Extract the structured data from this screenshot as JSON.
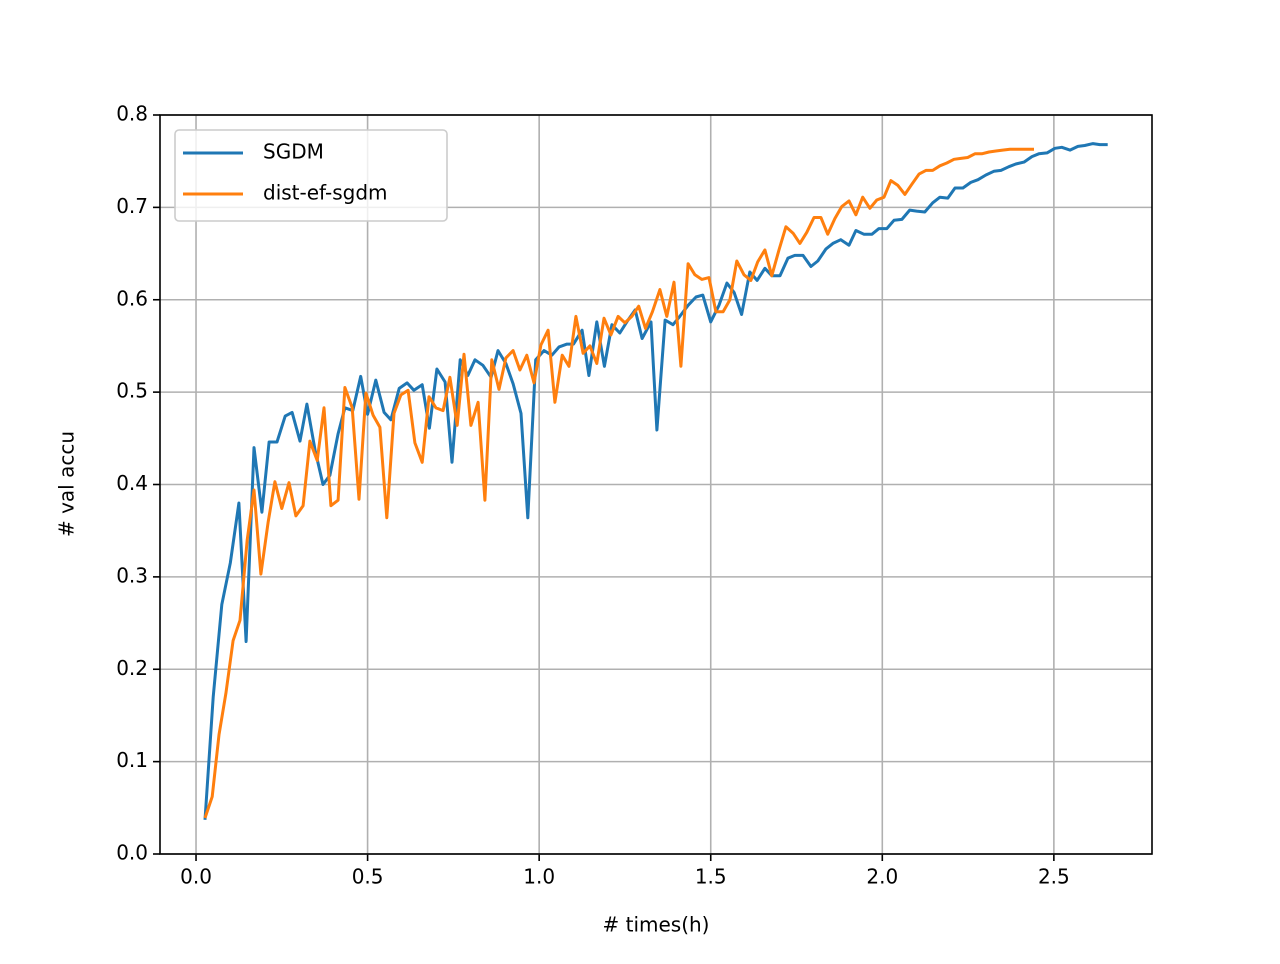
{
  "chart_data": {
    "type": "line",
    "xlabel": "# times(h)",
    "ylabel": "# val accu",
    "xlim": [
      -0.105,
      2.786
    ],
    "ylim": [
      0,
      0.8
    ],
    "xticks": [
      {
        "value": 0,
        "label": "0.0"
      },
      0.5,
      {
        "value": 1,
        "label": "1.0"
      },
      1.5,
      {
        "value": 2,
        "label": "2.0"
      },
      2.5
    ],
    "yticks": [
      {
        "value": 0,
        "label": "0.0"
      },
      0.1,
      0.2,
      0.3,
      0.4,
      0.5,
      0.6,
      0.7,
      0.8
    ],
    "grid": true,
    "legend": "upper left",
    "series": [
      {
        "name": "SGDM",
        "color": "#1f77b4",
        "x": [
          0.026,
          0.05,
          0.075,
          0.1,
          0.125,
          0.146,
          0.169,
          0.192,
          0.213,
          0.236,
          0.26,
          0.28,
          0.303,
          0.323,
          0.347,
          0.37,
          0.39,
          0.414,
          0.434,
          0.457,
          0.48,
          0.5,
          0.524,
          0.548,
          0.568,
          0.592,
          0.615,
          0.635,
          0.659,
          0.68,
          0.702,
          0.726,
          0.746,
          0.77,
          0.792,
          0.813,
          0.836,
          0.86,
          0.88,
          0.903,
          0.924,
          0.947,
          0.967,
          0.99,
          1.014,
          1.037,
          1.058,
          1.081,
          1.1,
          1.125,
          1.145,
          1.168,
          1.19,
          1.212,
          1.235,
          1.259,
          1.28,
          1.3,
          1.326,
          1.343,
          1.367,
          1.39,
          1.41,
          1.434,
          1.457,
          1.477,
          1.5,
          1.524,
          1.547,
          1.568,
          1.59,
          1.614,
          1.635,
          1.658,
          1.678,
          1.702,
          1.725,
          1.745,
          1.769,
          1.792,
          1.812,
          1.836,
          1.856,
          1.879,
          1.903,
          1.923,
          1.946,
          1.97,
          1.99,
          2.013,
          2.034,
          2.057,
          2.08,
          2.1,
          2.124,
          2.147,
          2.168,
          2.191,
          2.212,
          2.235,
          2.258,
          2.279,
          2.302,
          2.325,
          2.346,
          2.369,
          2.389,
          2.413,
          2.436,
          2.456,
          2.48,
          2.503,
          2.523,
          2.547,
          2.57,
          2.59,
          2.614,
          2.634,
          2.657
        ],
        "values": [
          0.037,
          0.17,
          0.27,
          0.315,
          0.38,
          0.23,
          0.44,
          0.37,
          0.446,
          0.446,
          0.474,
          0.478,
          0.447,
          0.487,
          0.437,
          0.4,
          0.41,
          0.455,
          0.483,
          0.48,
          0.517,
          0.476,
          0.513,
          0.478,
          0.47,
          0.504,
          0.51,
          0.502,
          0.508,
          0.461,
          0.525,
          0.511,
          0.424,
          0.535,
          0.518,
          0.535,
          0.529,
          0.516,
          0.545,
          0.531,
          0.509,
          0.477,
          0.364,
          0.535,
          0.545,
          0.54,
          0.549,
          0.552,
          0.552,
          0.567,
          0.518,
          0.576,
          0.528,
          0.573,
          0.564,
          0.578,
          0.589,
          0.558,
          0.576,
          0.459,
          0.578,
          0.573,
          0.582,
          0.594,
          0.603,
          0.605,
          0.576,
          0.594,
          0.618,
          0.608,
          0.584,
          0.63,
          0.621,
          0.634,
          0.626,
          0.626,
          0.645,
          0.648,
          0.648,
          0.636,
          0.642,
          0.655,
          0.661,
          0.665,
          0.659,
          0.675,
          0.671,
          0.671,
          0.677,
          0.677,
          0.686,
          0.687,
          0.697,
          0.696,
          0.695,
          0.705,
          0.711,
          0.71,
          0.721,
          0.721,
          0.727,
          0.73,
          0.735,
          0.739,
          0.74,
          0.744,
          0.747,
          0.749,
          0.755,
          0.758,
          0.759,
          0.764,
          0.765,
          0.762,
          0.766,
          0.767,
          0.769,
          0.768,
          0.768
        ]
      },
      {
        "name": "dist-ef-sgdm",
        "color": "#ff7f0e",
        "x": [
          0.026,
          0.047,
          0.067,
          0.087,
          0.108,
          0.128,
          0.149,
          0.169,
          0.189,
          0.21,
          0.23,
          0.25,
          0.271,
          0.291,
          0.312,
          0.332,
          0.353,
          0.373,
          0.393,
          0.414,
          0.434,
          0.455,
          0.475,
          0.495,
          0.516,
          0.536,
          0.556,
          0.577,
          0.597,
          0.618,
          0.638,
          0.659,
          0.679,
          0.699,
          0.72,
          0.74,
          0.761,
          0.781,
          0.801,
          0.822,
          0.842,
          0.862,
          0.883,
          0.903,
          0.924,
          0.944,
          0.964,
          0.985,
          1.005,
          1.026,
          1.046,
          1.067,
          1.087,
          1.107,
          1.128,
          1.148,
          1.168,
          1.189,
          1.209,
          1.23,
          1.25,
          1.27,
          1.29,
          1.31,
          1.33,
          1.352,
          1.372,
          1.393,
          1.413,
          1.434,
          1.454,
          1.474,
          1.495,
          1.515,
          1.536,
          1.556,
          1.576,
          1.597,
          1.617,
          1.637,
          1.658,
          1.678,
          1.699,
          1.719,
          1.74,
          1.76,
          1.78,
          1.801,
          1.821,
          1.841,
          1.862,
          1.882,
          1.903,
          1.923,
          1.943,
          1.964,
          1.984,
          2.005,
          2.025,
          2.045,
          2.066,
          2.086,
          2.107,
          2.127,
          2.147,
          2.168,
          2.188,
          2.209,
          2.229,
          2.249,
          2.27,
          2.29,
          2.311,
          2.331,
          2.351,
          2.372,
          2.392,
          2.413,
          2.442
        ],
        "values": [
          0.039,
          0.062,
          0.129,
          0.174,
          0.231,
          0.253,
          0.34,
          0.394,
          0.303,
          0.359,
          0.403,
          0.374,
          0.402,
          0.366,
          0.377,
          0.447,
          0.426,
          0.483,
          0.377,
          0.383,
          0.505,
          0.483,
          0.384,
          0.499,
          0.475,
          0.462,
          0.364,
          0.477,
          0.497,
          0.502,
          0.445,
          0.424,
          0.495,
          0.483,
          0.48,
          0.516,
          0.464,
          0.541,
          0.464,
          0.489,
          0.383,
          0.535,
          0.503,
          0.537,
          0.545,
          0.524,
          0.54,
          0.51,
          0.551,
          0.567,
          0.489,
          0.54,
          0.528,
          0.582,
          0.542,
          0.55,
          0.531,
          0.58,
          0.562,
          0.582,
          0.575,
          0.582,
          0.593,
          0.569,
          0.587,
          0.611,
          0.582,
          0.619,
          0.528,
          0.639,
          0.627,
          0.622,
          0.624,
          0.587,
          0.587,
          0.6,
          0.642,
          0.627,
          0.621,
          0.641,
          0.654,
          0.626,
          0.654,
          0.679,
          0.672,
          0.661,
          0.673,
          0.689,
          0.689,
          0.671,
          0.688,
          0.701,
          0.707,
          0.692,
          0.711,
          0.699,
          0.708,
          0.711,
          0.729,
          0.724,
          0.714,
          0.725,
          0.736,
          0.74,
          0.74,
          0.745,
          0.748,
          0.752,
          0.753,
          0.754,
          0.758,
          0.758,
          0.76,
          0.761,
          0.762,
          0.763,
          0.763,
          0.763,
          0.763
        ]
      }
    ]
  }
}
